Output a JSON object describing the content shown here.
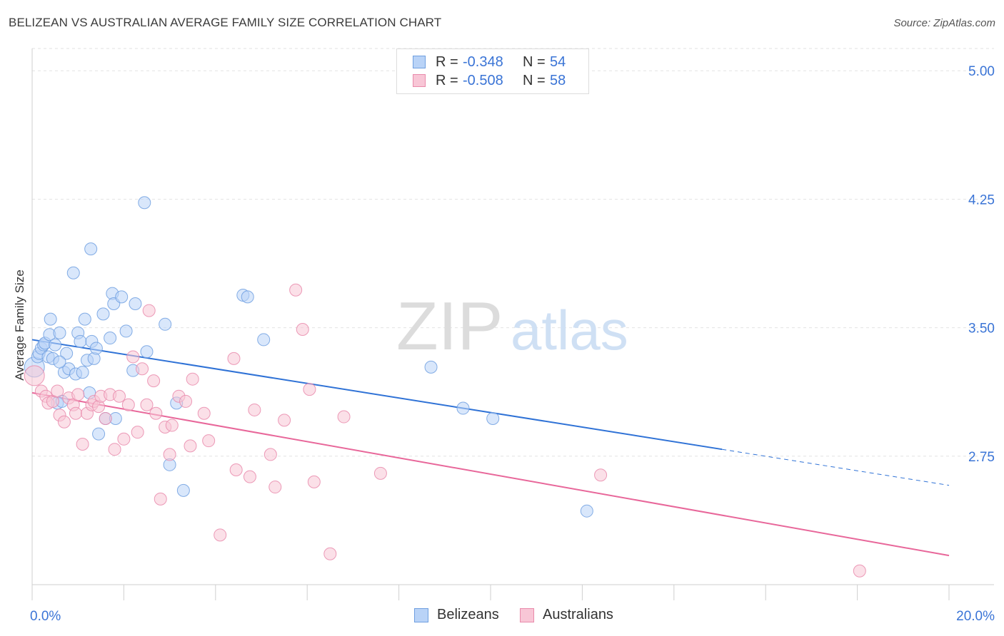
{
  "title": "BELIZEAN VS AUSTRALIAN AVERAGE FAMILY SIZE CORRELATION CHART",
  "source": "Source: ZipAtlas.com",
  "watermark": {
    "zip": "ZIP",
    "atlas": "atlas"
  },
  "legend": {
    "r_label": "R =",
    "n_label": "N =",
    "items": [
      {
        "r": "-0.348",
        "n": "54",
        "fill": "#b9d3f7",
        "stroke": "#6f9fe0"
      },
      {
        "r": "-0.508",
        "n": "58",
        "fill": "#f8c6d6",
        "stroke": "#e98aab"
      }
    ]
  },
  "bottom_legend": {
    "belizeans": "Belizeans",
    "australians": "Australians"
  },
  "chart_data": {
    "type": "scatter",
    "ylabel": "Average Family Size",
    "xlim": [
      0,
      20
    ],
    "ylim": [
      2.0,
      5.13
    ],
    "x_tick_labels": [
      "0.0%",
      "20.0%"
    ],
    "y_ticks": [
      {
        "value": 2.75,
        "label": "2.75"
      },
      {
        "value": 3.5,
        "label": "3.50"
      },
      {
        "value": 4.25,
        "label": "4.25"
      },
      {
        "value": 5.0,
        "label": "5.00"
      }
    ],
    "grid": true,
    "colors": {
      "belizean_fill": "#b9d3f7",
      "belizean_stroke": "#6f9fe0",
      "belizean_line": "#2f72d6",
      "australian_fill": "#f8c6d6",
      "australian_stroke": "#e98aab",
      "australian_line": "#e8679a",
      "axis_label": "#3a74d6"
    },
    "series": [
      {
        "name": "Belizeans",
        "points": [
          [
            0.05,
            3.27
          ],
          [
            0.12,
            3.33
          ],
          [
            0.15,
            3.35
          ],
          [
            0.2,
            3.38
          ],
          [
            0.25,
            3.4
          ],
          [
            0.28,
            3.41
          ],
          [
            0.35,
            3.33
          ],
          [
            0.38,
            3.46
          ],
          [
            0.4,
            3.55
          ],
          [
            0.45,
            3.32
          ],
          [
            0.5,
            3.4
          ],
          [
            0.55,
            3.06
          ],
          [
            0.6,
            3.47
          ],
          [
            0.65,
            3.07
          ],
          [
            0.7,
            3.24
          ],
          [
            0.75,
            3.35
          ],
          [
            0.8,
            3.26
          ],
          [
            0.9,
            3.82
          ],
          [
            0.95,
            3.23
          ],
          [
            1.0,
            3.47
          ],
          [
            1.05,
            3.42
          ],
          [
            1.1,
            3.24
          ],
          [
            1.15,
            3.55
          ],
          [
            1.2,
            3.31
          ],
          [
            1.25,
            3.12
          ],
          [
            1.28,
            3.96
          ],
          [
            1.3,
            3.42
          ],
          [
            1.35,
            3.32
          ],
          [
            1.4,
            3.38
          ],
          [
            1.45,
            2.88
          ],
          [
            1.55,
            3.58
          ],
          [
            1.6,
            2.97
          ],
          [
            1.7,
            3.44
          ],
          [
            1.75,
            3.7
          ],
          [
            1.78,
            3.64
          ],
          [
            1.82,
            2.97
          ],
          [
            1.95,
            3.68
          ],
          [
            2.05,
            3.48
          ],
          [
            2.2,
            3.25
          ],
          [
            2.25,
            3.64
          ],
          [
            2.45,
            4.23
          ],
          [
            2.5,
            3.36
          ],
          [
            2.9,
            3.52
          ],
          [
            3.0,
            2.7
          ],
          [
            3.15,
            3.06
          ],
          [
            3.3,
            2.55
          ],
          [
            4.6,
            3.69
          ],
          [
            4.7,
            3.68
          ],
          [
            5.05,
            3.43
          ],
          [
            8.7,
            3.27
          ],
          [
            9.4,
            3.03
          ],
          [
            10.05,
            2.97
          ],
          [
            12.1,
            2.43
          ],
          [
            0.6,
            3.3
          ]
        ]
      },
      {
        "name": "Australians",
        "points": [
          [
            0.05,
            3.22
          ],
          [
            0.2,
            3.13
          ],
          [
            0.3,
            3.1
          ],
          [
            0.35,
            3.06
          ],
          [
            0.45,
            3.07
          ],
          [
            0.55,
            3.13
          ],
          [
            0.6,
            2.99
          ],
          [
            0.7,
            2.95
          ],
          [
            0.8,
            3.09
          ],
          [
            0.9,
            3.05
          ],
          [
            0.95,
            3.0
          ],
          [
            1.0,
            3.11
          ],
          [
            1.1,
            2.82
          ],
          [
            1.2,
            3.0
          ],
          [
            1.3,
            3.05
          ],
          [
            1.35,
            3.07
          ],
          [
            1.45,
            3.04
          ],
          [
            1.5,
            3.1
          ],
          [
            1.6,
            2.97
          ],
          [
            1.7,
            3.11
          ],
          [
            1.8,
            2.79
          ],
          [
            1.9,
            3.1
          ],
          [
            2.0,
            2.85
          ],
          [
            2.1,
            3.05
          ],
          [
            2.2,
            3.33
          ],
          [
            2.3,
            2.89
          ],
          [
            2.4,
            3.26
          ],
          [
            2.5,
            3.05
          ],
          [
            2.55,
            3.6
          ],
          [
            2.65,
            3.19
          ],
          [
            2.7,
            3.0
          ],
          [
            2.8,
            2.5
          ],
          [
            2.9,
            2.92
          ],
          [
            3.0,
            2.76
          ],
          [
            3.05,
            2.93
          ],
          [
            3.2,
            3.1
          ],
          [
            3.35,
            3.07
          ],
          [
            3.45,
            2.81
          ],
          [
            3.5,
            3.2
          ],
          [
            3.75,
            3.0
          ],
          [
            3.85,
            2.84
          ],
          [
            4.1,
            2.29
          ],
          [
            4.4,
            3.32
          ],
          [
            4.45,
            2.67
          ],
          [
            4.75,
            2.63
          ],
          [
            4.85,
            3.02
          ],
          [
            5.2,
            2.76
          ],
          [
            5.3,
            2.57
          ],
          [
            5.5,
            2.96
          ],
          [
            5.75,
            3.72
          ],
          [
            5.9,
            3.49
          ],
          [
            6.05,
            3.14
          ],
          [
            6.15,
            2.6
          ],
          [
            6.5,
            2.18
          ],
          [
            6.8,
            2.98
          ],
          [
            7.6,
            2.65
          ],
          [
            12.4,
            2.64
          ],
          [
            18.05,
            2.08
          ]
        ]
      }
    ],
    "trendlines": [
      {
        "series": "Belizeans",
        "x": [
          0.0,
          15.05
        ],
        "y": [
          3.43,
          2.79
        ],
        "dashed_to": [
          20.0,
          2.58
        ]
      },
      {
        "series": "Australians",
        "x": [
          0.0,
          20.0
        ],
        "y": [
          3.12,
          2.17
        ]
      }
    ]
  }
}
